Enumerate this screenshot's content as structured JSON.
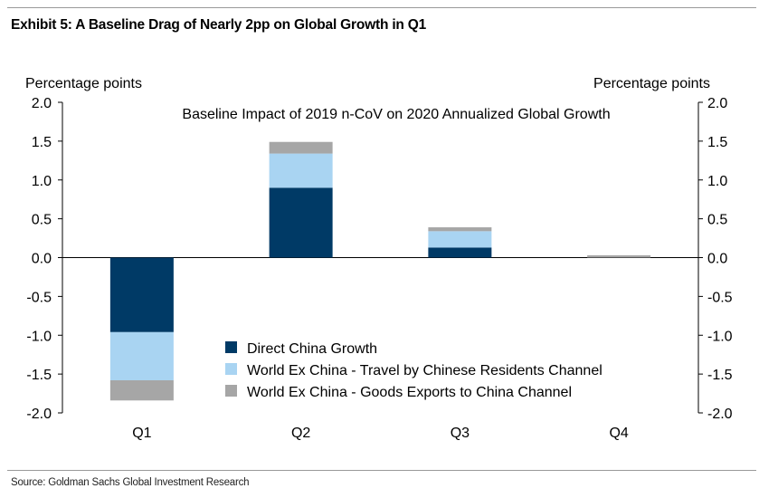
{
  "exhibit_title": "Exhibit 5: A Baseline Drag of Nearly 2pp on Global Growth in Q1",
  "source": "Source: Goldman Sachs Global Investment Research",
  "chart_data": {
    "type": "bar",
    "stacked": true,
    "title": "Baseline Impact of 2019 n-CoV on 2020 Annualized Global Growth",
    "ylabel_left": "Percentage points",
    "ylabel_right": "Percentage points",
    "categories": [
      "Q1",
      "Q2",
      "Q3",
      "Q4"
    ],
    "ylim": [
      -2.0,
      2.0
    ],
    "yticks": [
      "2.0",
      "1.5",
      "1.0",
      "0.5",
      "0.0",
      "-0.5",
      "-1.0",
      "-1.5",
      "-2.0"
    ],
    "grid": false,
    "legend_position": "bottom-center",
    "series": [
      {
        "name": "Direct China Growth",
        "color": "#003a66",
        "values": [
          -0.96,
          0.9,
          0.13,
          0.0
        ]
      },
      {
        "name": "World Ex China - Travel by Chinese Residents Channel",
        "color": "#a9d4f2",
        "values": [
          -0.62,
          0.44,
          0.21,
          0.0
        ]
      },
      {
        "name": "World Ex China - Goods Exports to China Channel",
        "color": "#a6a6a6",
        "values": [
          -0.26,
          0.15,
          0.05,
          0.03
        ]
      }
    ]
  }
}
